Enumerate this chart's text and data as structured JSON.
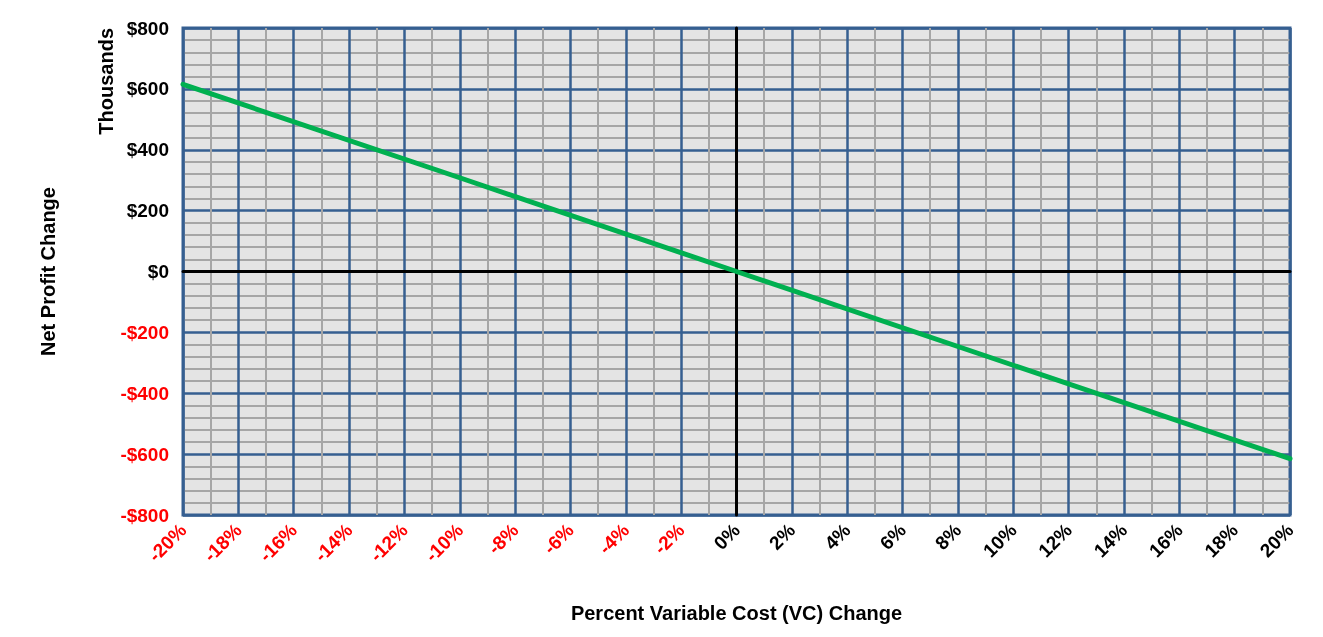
{
  "chart_data": {
    "type": "line",
    "xlabel": "Percent Variable Cost (VC) Change",
    "ylabel": "Net Profit Change",
    "annotations": [
      "Thousands"
    ],
    "x": [
      -20,
      -10,
      0,
      10,
      20
    ],
    "series": [
      {
        "color": "#00b050",
        "values": [
          615,
          308,
          0,
          -308,
          -615
        ]
      }
    ],
    "xlim": [
      -20,
      20
    ],
    "xticks": [
      {
        "value": -20,
        "label": "-20%"
      },
      {
        "value": -18,
        "label": "-18%"
      },
      {
        "value": -16,
        "label": "-16%"
      },
      {
        "value": -14,
        "label": "-14%"
      },
      {
        "value": -12,
        "label": "-12%"
      },
      {
        "value": -10,
        "label": "-10%"
      },
      {
        "value": -8,
        "label": "-8%"
      },
      {
        "value": -6,
        "label": "-6%"
      },
      {
        "value": -4,
        "label": "-4%"
      },
      {
        "value": -2,
        "label": "-2%"
      },
      {
        "value": 0,
        "label": "0%"
      },
      {
        "value": 2,
        "label": "2%"
      },
      {
        "value": 4,
        "label": "4%"
      },
      {
        "value": 6,
        "label": "6%"
      },
      {
        "value": 8,
        "label": "8%"
      },
      {
        "value": 10,
        "label": "10%"
      },
      {
        "value": 12,
        "label": "12%"
      },
      {
        "value": 14,
        "label": "14%"
      },
      {
        "value": 16,
        "label": "16%"
      },
      {
        "value": 18,
        "label": "18%"
      },
      {
        "value": 20,
        "label": "20%"
      }
    ],
    "ylim": [
      -800,
      800
    ],
    "yticks": [
      {
        "value": -800,
        "label": "-$800"
      },
      {
        "value": -600,
        "label": "-$600"
      },
      {
        "value": -400,
        "label": "-$400"
      },
      {
        "value": -200,
        "label": "-$200"
      },
      {
        "value": 0,
        "label": "$0"
      },
      {
        "value": 200,
        "label": "$200"
      },
      {
        "value": 400,
        "label": "$400"
      },
      {
        "value": 600,
        "label": "$600"
      },
      {
        "value": 800,
        "label": "$800"
      }
    ],
    "grid": true,
    "marker": "none",
    "line_style": "solid"
  }
}
